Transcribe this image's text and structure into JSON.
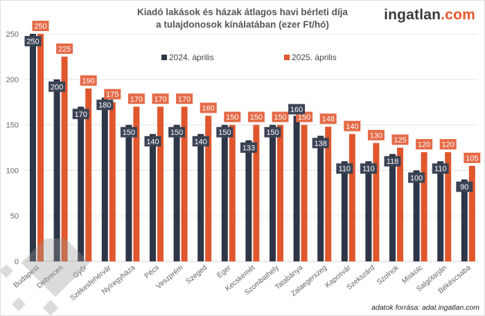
{
  "header": {
    "title_line1": "Kiadó lakások és házak átlagos havi bérleti díja",
    "title_line2": "a tulajdonosok kínálatában (ezer Ft/hó)",
    "logo_main": "ingatlan",
    "logo_domain": ".com"
  },
  "footer": {
    "source": "adatok forrása: adat.ingatlan.com"
  },
  "colors": {
    "series_2024": "#2e3546",
    "series_2025": "#e0572d",
    "grid": "#e3e3e3",
    "axis_text": "#666666"
  },
  "chart_data": {
    "type": "bar",
    "title": "Kiadó lakások és házak átlagos havi bérleti díja a tulajdonosok kínálatában (ezer Ft/hó)",
    "xlabel": "",
    "ylabel": "",
    "ylim": [
      0,
      250
    ],
    "yticks": [
      0,
      50,
      100,
      150,
      200,
      250
    ],
    "grid": true,
    "legend_position": "top",
    "categories": [
      "Budapest",
      "Debrecen",
      "Győr",
      "Székesfehérvár",
      "Nyíregyháza",
      "Pécs",
      "Veszprém",
      "Szeged",
      "Eger",
      "Kecskemét",
      "Szombathely",
      "Tatabánya",
      "Zalaegerszeg",
      "Kaposvár",
      "Szekszárd",
      "Szolnok",
      "Miskolc",
      "Salgótarján",
      "Békéscsaba"
    ],
    "series": [
      {
        "name": "2024. április",
        "values": [
          250,
          200,
          170,
          180,
          150,
          140,
          150,
          140,
          150,
          133,
          150,
          160,
          138,
          110,
          110,
          118,
          100,
          110,
          90
        ]
      },
      {
        "name": "2025. április",
        "values": [
          250,
          225,
          190,
          175,
          170,
          170,
          170,
          160,
          150,
          150,
          150,
          150,
          148,
          140,
          130,
          125,
          120,
          120,
          105
        ]
      }
    ]
  }
}
